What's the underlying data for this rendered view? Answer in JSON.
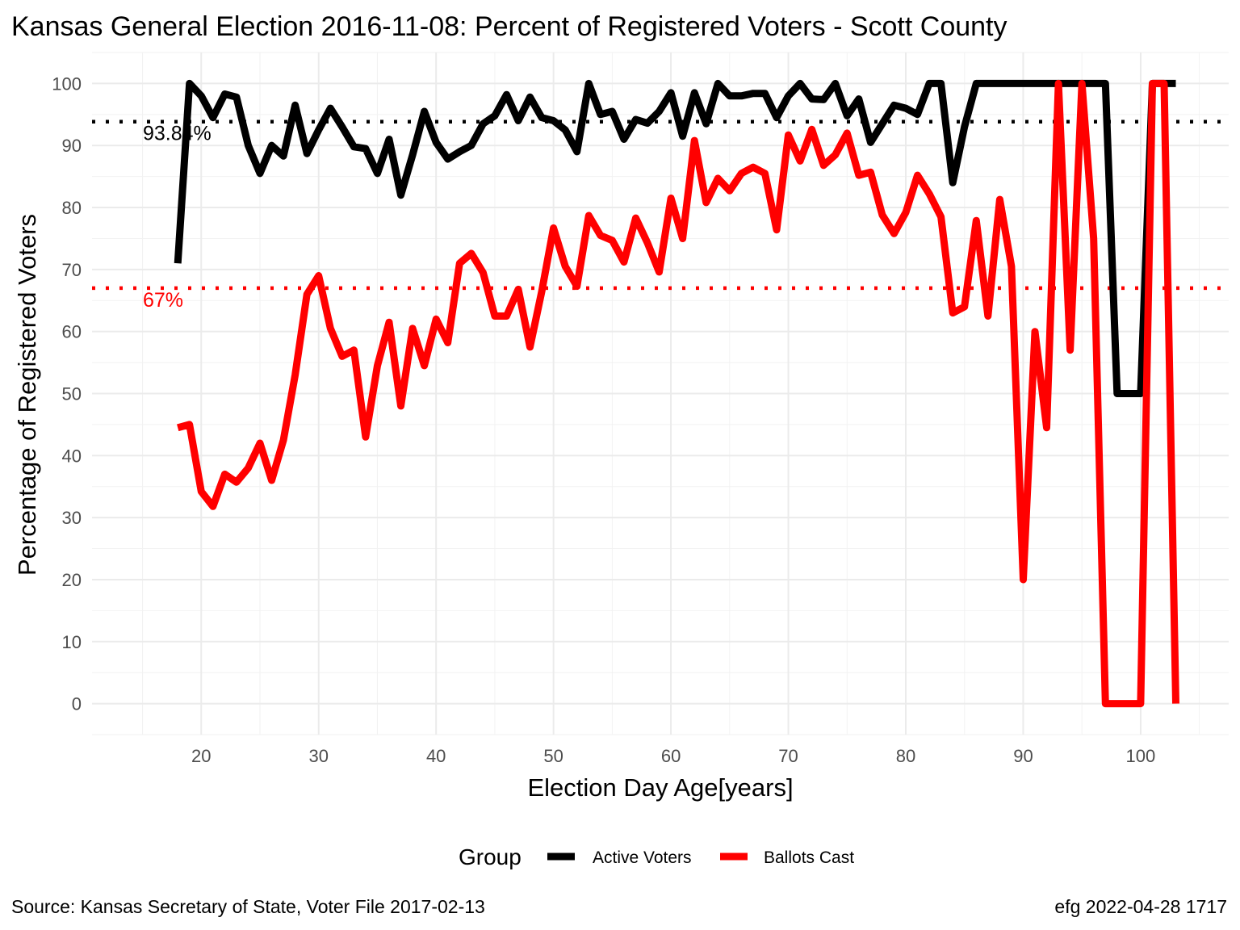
{
  "chart_data": {
    "type": "line",
    "title": "Kansas General Election 2016-11-08:  Percent of Registered Voters - Scott County",
    "xlabel": "Election Day Age[years]",
    "ylabel": "Percentage of Registered Voters",
    "xlim": [
      10.7,
      107.5
    ],
    "ylim": [
      -5,
      105
    ],
    "x_ticks": [
      20,
      30,
      40,
      50,
      60,
      70,
      80,
      90,
      100
    ],
    "y_ticks": [
      0,
      10,
      20,
      30,
      40,
      50,
      60,
      70,
      80,
      90,
      100
    ],
    "grid": true,
    "legend": {
      "title": "Group",
      "position": "bottom"
    },
    "series": [
      {
        "name": "Active Voters",
        "color": "#000000",
        "x": [
          18,
          19,
          20,
          21,
          22,
          23,
          24,
          25,
          26,
          27,
          28,
          29,
          30,
          31,
          32,
          33,
          34,
          35,
          36,
          37,
          38,
          39,
          40,
          41,
          42,
          43,
          44,
          45,
          46,
          47,
          48,
          49,
          50,
          51,
          52,
          53,
          54,
          55,
          56,
          57,
          58,
          59,
          60,
          61,
          62,
          63,
          64,
          65,
          66,
          67,
          68,
          69,
          70,
          71,
          72,
          73,
          74,
          75,
          76,
          77,
          78,
          79,
          80,
          81,
          82,
          83,
          84,
          85,
          86,
          87,
          88,
          89,
          90,
          91,
          92,
          93,
          94,
          95,
          96,
          97,
          98,
          99,
          100,
          101,
          102,
          103
        ],
        "values": [
          71,
          100,
          98,
          94.5,
          98.3,
          97.8,
          90,
          85.5,
          90,
          88.3,
          96.5,
          88.7,
          92.5,
          96,
          93,
          89.8,
          89.5,
          85.5,
          91,
          82,
          88.5,
          95.5,
          90.5,
          87.8,
          89,
          90,
          93.5,
          94.8,
          98.2,
          94,
          97.8,
          94.5,
          94,
          92.5,
          89,
          100,
          95,
          95.5,
          91,
          94.2,
          93.6,
          95.5,
          98.5,
          91.5,
          98.5,
          93.5,
          100,
          98,
          98,
          98.4,
          98.4,
          94.5,
          98,
          100,
          97.5,
          97.4,
          100,
          94.8,
          97.5,
          90.5,
          93.5,
          96.5,
          96,
          95,
          100,
          100,
          84,
          93,
          100,
          100,
          100,
          100,
          100,
          100,
          100,
          100,
          100,
          100,
          100,
          100,
          50,
          50,
          50,
          100,
          100,
          100
        ]
      },
      {
        "name": "Ballots Cast",
        "color": "#ff0000",
        "x": [
          18,
          19,
          20,
          21,
          22,
          23,
          24,
          25,
          26,
          27,
          28,
          29,
          30,
          31,
          32,
          33,
          34,
          35,
          36,
          37,
          38,
          39,
          40,
          41,
          42,
          43,
          44,
          45,
          46,
          47,
          48,
          49,
          50,
          51,
          52,
          53,
          54,
          55,
          56,
          57,
          58,
          59,
          60,
          61,
          62,
          63,
          64,
          65,
          66,
          67,
          68,
          69,
          70,
          71,
          72,
          73,
          74,
          75,
          76,
          77,
          78,
          79,
          80,
          81,
          82,
          83,
          84,
          85,
          86,
          87,
          88,
          89,
          90,
          91,
          92,
          93,
          94,
          95,
          96,
          97,
          98,
          99,
          100,
          101,
          102,
          103
        ],
        "values": [
          44.5,
          45,
          34.2,
          31.8,
          37,
          35.7,
          38,
          42,
          36,
          42.5,
          53,
          66,
          69,
          60.5,
          56,
          57,
          43,
          54.5,
          61.5,
          48,
          60.5,
          54.5,
          62,
          58.2,
          71,
          72.6,
          69.5,
          62.5,
          62.5,
          66.8,
          57.5,
          66.5,
          76.7,
          70.5,
          67.3,
          78.7,
          75.5,
          74.7,
          71.2,
          78.3,
          74.3,
          69.6,
          81.5,
          75,
          90.8,
          80.8,
          84.7,
          82.7,
          85.5,
          86.5,
          85.5,
          76.4,
          91.7,
          87.5,
          92.6,
          86.8,
          88.5,
          92,
          85.2,
          85.7,
          78.8,
          75.8,
          79.2,
          85.2,
          82.2,
          78.5,
          63,
          64,
          77.9,
          62.5,
          81.3,
          70.5,
          20,
          60,
          44.5,
          100,
          57,
          100,
          75,
          0,
          0,
          0,
          0,
          100,
          100,
          0
        ]
      }
    ],
    "reference_lines": [
      {
        "series": "Active Voters",
        "value": 93.84,
        "label": "93.84%",
        "color": "#000000"
      },
      {
        "series": "Ballots Cast",
        "value": 67,
        "label": "67%",
        "color": "#ff0000"
      }
    ]
  },
  "captions": {
    "source": "Source:  Kansas Secretary of State, Voter File  2017-02-13",
    "credit": "efg 2022-04-28 1717"
  }
}
